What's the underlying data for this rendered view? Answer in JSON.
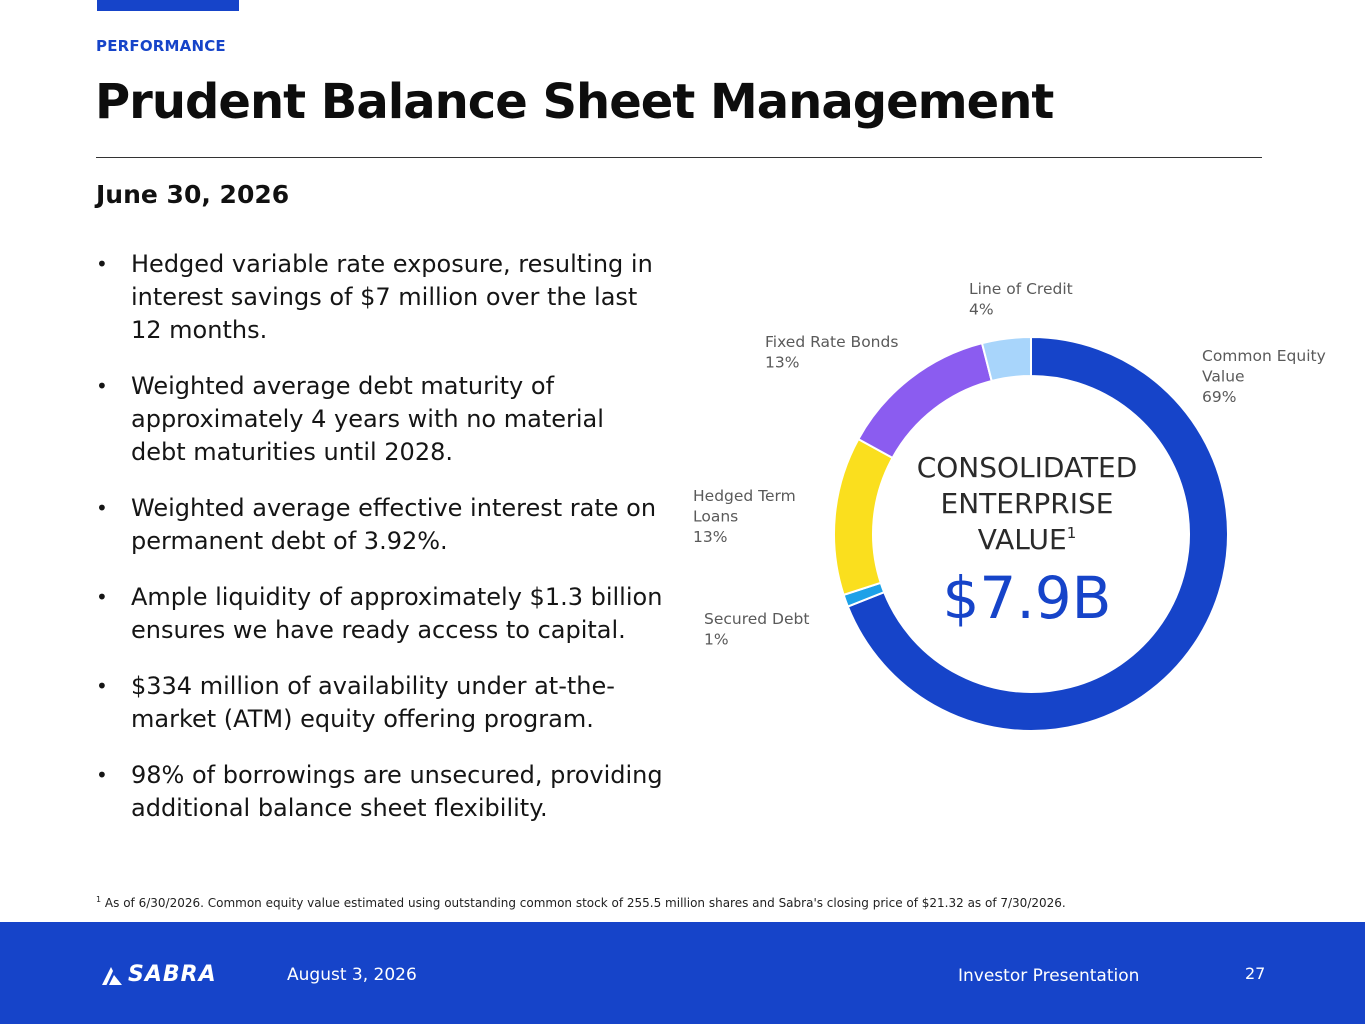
{
  "header": {
    "kicker": "PERFORMANCE",
    "title": "Prudent Balance Sheet Management",
    "subtitle": "June 30, 2026"
  },
  "bullets": [
    "Hedged variable rate exposure, resulting in interest savings of $7 million over the last 12 months.",
    "Weighted average debt maturity of approximately 4 years with no material debt maturities until 2028.",
    "Weighted average effective interest rate on permanent debt of 3.92%.",
    "Ample liquidity of approximately $1.3 billion ensures we have ready access to capital.",
    "$334 million of availability under at-the-market (ATM) equity offering program.",
    "98% of borrowings are unsecured, providing additional balance sheet flexibility."
  ],
  "bullet_marker": "•",
  "chart_data": {
    "type": "pie",
    "variant": "donut",
    "center_label": [
      "CONSOLIDATED",
      "ENTERPRISE",
      "VALUE"
    ],
    "center_label_superscript": "1",
    "center_value": "$7.9B",
    "segments": [
      {
        "label": [
          "Common Equity",
          "Value"
        ],
        "value_label": "69%",
        "value": 69,
        "color": "#1644c9"
      },
      {
        "label": [
          "Secured Debt"
        ],
        "value_label": "1%",
        "value": 1,
        "color": "#1da1e8"
      },
      {
        "label": [
          "Hedged Term",
          "Loans"
        ],
        "value_label": "13%",
        "value": 13,
        "color": "#fadf1e"
      },
      {
        "label": [
          "Fixed Rate Bonds"
        ],
        "value_label": "13%",
        "value": 13,
        "color": "#8b5cf0"
      },
      {
        "label": [
          "Line of Credit"
        ],
        "value_label": "4%",
        "value": 4,
        "color": "#a8d5fb"
      }
    ],
    "start": "top",
    "direction": "clockwise"
  },
  "footnote": {
    "marker": "1",
    "text": "As of 6/30/2026. Common equity value estimated using outstanding common stock of 255.5 million shares and Sabra's closing price of $21.32 as of 7/30/2026."
  },
  "footer": {
    "logo_text": "SABRA",
    "date": "August 3, 2026",
    "title": "Investor Presentation",
    "page": "27"
  },
  "colors": {
    "brand_blue": "#1644c9",
    "label_gray": "#5a5a5a",
    "center_text": "#2a2a2a"
  }
}
